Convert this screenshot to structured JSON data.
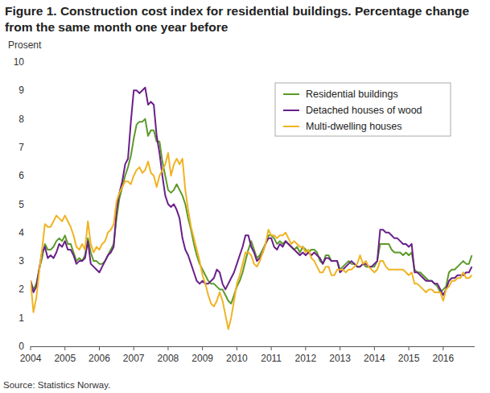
{
  "chart_data": {
    "type": "line",
    "title": "Figure 1. Construction cost index for residential buildings. Percentage change from the same month one year before",
    "y_label": "Prosent",
    "source": "Source: Statistics Norway.",
    "grid": false,
    "legend": "upper right",
    "xlim": [
      2004,
      2016.917
    ],
    "xticks": [
      2004,
      2005,
      2006,
      2007,
      2008,
      2009,
      2010,
      2011,
      2012,
      2013,
      2014,
      2015,
      2016
    ],
    "ylim": [
      0,
      10
    ],
    "yticks": [
      0,
      1,
      2,
      3,
      4,
      5,
      6,
      7,
      8,
      9,
      10
    ],
    "x": [
      2004,
      2004.083,
      2004.167,
      2004.25,
      2004.333,
      2004.417,
      2004.5,
      2004.583,
      2004.667,
      2004.75,
      2004.833,
      2004.917,
      2005,
      2005.083,
      2005.167,
      2005.25,
      2005.333,
      2005.417,
      2005.5,
      2005.583,
      2005.667,
      2005.75,
      2005.833,
      2005.917,
      2006,
      2006.083,
      2006.167,
      2006.25,
      2006.333,
      2006.417,
      2006.5,
      2006.583,
      2006.667,
      2006.75,
      2006.833,
      2006.917,
      2007,
      2007.083,
      2007.167,
      2007.25,
      2007.333,
      2007.417,
      2007.5,
      2007.583,
      2007.667,
      2007.75,
      2007.833,
      2007.917,
      2008,
      2008.083,
      2008.167,
      2008.25,
      2008.333,
      2008.417,
      2008.5,
      2008.583,
      2008.667,
      2008.75,
      2008.833,
      2008.917,
      2009,
      2009.083,
      2009.167,
      2009.25,
      2009.333,
      2009.417,
      2009.5,
      2009.583,
      2009.667,
      2009.75,
      2009.833,
      2009.917,
      2010,
      2010.083,
      2010.167,
      2010.25,
      2010.333,
      2010.417,
      2010.5,
      2010.583,
      2010.667,
      2010.75,
      2010.833,
      2010.917,
      2011,
      2011.083,
      2011.167,
      2011.25,
      2011.333,
      2011.417,
      2011.5,
      2011.583,
      2011.667,
      2011.75,
      2011.833,
      2011.917,
      2012,
      2012.083,
      2012.167,
      2012.25,
      2012.333,
      2012.417,
      2012.5,
      2012.583,
      2012.667,
      2012.75,
      2012.833,
      2012.917,
      2013,
      2013.083,
      2013.167,
      2013.25,
      2013.333,
      2013.417,
      2013.5,
      2013.583,
      2013.667,
      2013.75,
      2013.833,
      2013.917,
      2014,
      2014.083,
      2014.167,
      2014.25,
      2014.333,
      2014.417,
      2014.5,
      2014.583,
      2014.667,
      2014.75,
      2014.833,
      2014.917,
      2015,
      2015.083,
      2015.167,
      2015.25,
      2015.333,
      2015.417,
      2015.5,
      2015.583,
      2015.667,
      2015.75,
      2015.833,
      2015.917,
      2016,
      2016.083,
      2016.167,
      2016.25,
      2016.333,
      2016.417,
      2016.5,
      2016.583,
      2016.667,
      2016.75,
      2016.833
    ],
    "series": [
      {
        "name": "Residential buildings",
        "color": "#5b9a2a",
        "values": [
          2.3,
          2.0,
          2.2,
          2.7,
          3.1,
          3.6,
          3.4,
          3.4,
          3.5,
          3.7,
          3.8,
          3.7,
          3.9,
          3.6,
          3.6,
          3.3,
          3.0,
          3.1,
          3.0,
          3.2,
          3.8,
          3.3,
          3.0,
          3.0,
          2.9,
          2.9,
          3.0,
          3.2,
          3.4,
          3.6,
          4.5,
          5.2,
          5.6,
          6.0,
          6.3,
          6.7,
          7.3,
          7.8,
          7.9,
          7.9,
          8.0,
          7.4,
          7.6,
          7.6,
          7.2,
          7.2,
          6.5,
          6.0,
          5.5,
          5.4,
          5.5,
          5.7,
          5.5,
          5.3,
          5.0,
          4.5,
          4.1,
          3.6,
          3.2,
          2.9,
          2.7,
          2.5,
          2.3,
          2.2,
          2.2,
          2.1,
          2.0,
          2.0,
          1.8,
          1.6,
          1.5,
          1.8,
          2.1,
          2.3,
          2.6,
          3.0,
          3.4,
          3.7,
          3.4,
          3.1,
          3.2,
          3.4,
          3.6,
          3.9,
          3.9,
          3.8,
          3.6,
          3.7,
          3.6,
          3.7,
          3.6,
          3.5,
          3.4,
          3.5,
          3.3,
          3.5,
          3.4,
          3.3,
          3.4,
          3.4,
          3.3,
          3.0,
          2.9,
          3.2,
          3.2,
          3.0,
          3.0,
          3.0,
          2.7,
          2.8,
          2.9,
          3.0,
          2.9,
          2.9,
          2.8,
          2.8,
          2.9,
          2.8,
          2.8,
          2.8,
          2.8,
          3.0,
          3.6,
          3.6,
          3.6,
          3.6,
          3.4,
          3.3,
          3.3,
          3.3,
          3.2,
          3.3,
          3.2,
          3.3,
          2.7,
          2.6,
          2.6,
          2.5,
          2.4,
          2.3,
          2.3,
          2.2,
          2.1,
          1.9,
          2.0,
          2.1,
          2.6,
          2.7,
          2.7,
          2.8,
          2.9,
          3.0,
          2.9,
          2.9,
          3.2
        ]
      },
      {
        "name": "Detached houses of wood",
        "color": "#6a1f8a",
        "values": [
          2.3,
          1.9,
          2.1,
          2.7,
          3.3,
          3.5,
          3.1,
          3.2,
          3.1,
          3.3,
          3.6,
          3.5,
          3.7,
          3.4,
          3.4,
          3.2,
          2.9,
          3.0,
          3.0,
          3.1,
          3.7,
          2.9,
          2.8,
          2.7,
          2.6,
          2.8,
          3.0,
          3.2,
          3.3,
          3.5,
          4.8,
          5.4,
          5.8,
          6.4,
          6.6,
          7.9,
          9.0,
          9.0,
          8.9,
          9.0,
          9.1,
          8.5,
          8.6,
          8.5,
          7.4,
          6.8,
          6.0,
          5.3,
          5.0,
          4.9,
          5.0,
          4.8,
          4.5,
          3.8,
          3.4,
          3.2,
          2.9,
          2.6,
          2.3,
          2.2,
          2.3,
          2.2,
          2.2,
          2.3,
          2.4,
          2.7,
          2.6,
          2.2,
          2.0,
          2.2,
          2.4,
          2.6,
          2.9,
          3.2,
          3.5,
          3.9,
          3.9,
          3.5,
          3.3,
          3.0,
          3.1,
          3.3,
          3.6,
          3.8,
          3.8,
          3.5,
          3.4,
          3.6,
          3.5,
          3.7,
          3.6,
          3.5,
          3.4,
          3.3,
          3.2,
          3.3,
          3.2,
          3.3,
          3.2,
          3.3,
          3.2,
          3.1,
          2.9,
          3.1,
          3.1,
          3.0,
          3.0,
          3.0,
          2.6,
          2.7,
          2.8,
          2.9,
          3.0,
          2.9,
          2.8,
          2.8,
          2.9,
          2.9,
          2.8,
          2.8,
          2.9,
          3.0,
          4.1,
          4.1,
          4.0,
          4.0,
          3.9,
          3.8,
          3.8,
          3.7,
          3.6,
          3.6,
          3.5,
          3.6,
          2.6,
          2.6,
          2.5,
          2.4,
          2.3,
          2.3,
          2.3,
          2.2,
          2.2,
          2.0,
          1.8,
          2.0,
          2.3,
          2.4,
          2.4,
          2.5,
          2.5,
          2.5,
          2.6,
          2.6,
          2.8
        ]
      },
      {
        "name": "Multi-dwelling houses",
        "color": "#f0b323",
        "values": [
          2.3,
          1.2,
          1.7,
          2.6,
          3.4,
          4.3,
          4.2,
          4.2,
          4.4,
          4.6,
          4.5,
          4.4,
          4.6,
          4.4,
          4.2,
          3.9,
          3.5,
          3.4,
          3.6,
          3.4,
          4.4,
          3.6,
          3.3,
          3.5,
          3.4,
          3.6,
          3.7,
          4.0,
          4.1,
          4.3,
          5.1,
          5.4,
          5.6,
          5.8,
          5.8,
          5.7,
          6.0,
          6.2,
          6.3,
          6.1,
          6.2,
          6.5,
          6.1,
          6.0,
          5.6,
          6.0,
          6.2,
          6.4,
          6.8,
          6.0,
          6.4,
          6.6,
          6.4,
          6.6,
          5.5,
          4.8,
          4.2,
          3.8,
          3.4,
          3.0,
          2.5,
          2.2,
          1.8,
          1.5,
          1.4,
          1.6,
          1.9,
          1.6,
          1.1,
          0.6,
          1.0,
          1.6,
          2.2,
          2.5,
          2.9,
          3.3,
          3.3,
          3.2,
          2.9,
          2.8,
          3.0,
          3.3,
          3.6,
          4.1,
          3.9,
          3.9,
          3.8,
          3.9,
          3.9,
          4.0,
          3.8,
          3.6,
          3.7,
          3.6,
          3.5,
          3.5,
          3.3,
          3.4,
          3.1,
          3.0,
          2.8,
          2.6,
          2.6,
          2.8,
          2.8,
          2.5,
          2.5,
          2.7,
          2.7,
          2.7,
          2.6,
          2.7,
          2.7,
          2.8,
          2.9,
          3.2,
          2.9,
          3.0,
          2.8,
          2.7,
          2.6,
          2.7,
          3.0,
          3.0,
          2.8,
          2.7,
          2.7,
          2.7,
          2.7,
          2.7,
          2.7,
          2.6,
          2.5,
          2.6,
          2.2,
          2.2,
          2.1,
          2.0,
          1.9,
          2.0,
          2.0,
          1.9,
          1.9,
          1.9,
          1.6,
          2.0,
          2.1,
          2.3,
          2.3,
          2.4,
          2.4,
          2.6,
          2.4,
          2.4,
          2.5
        ]
      }
    ]
  }
}
